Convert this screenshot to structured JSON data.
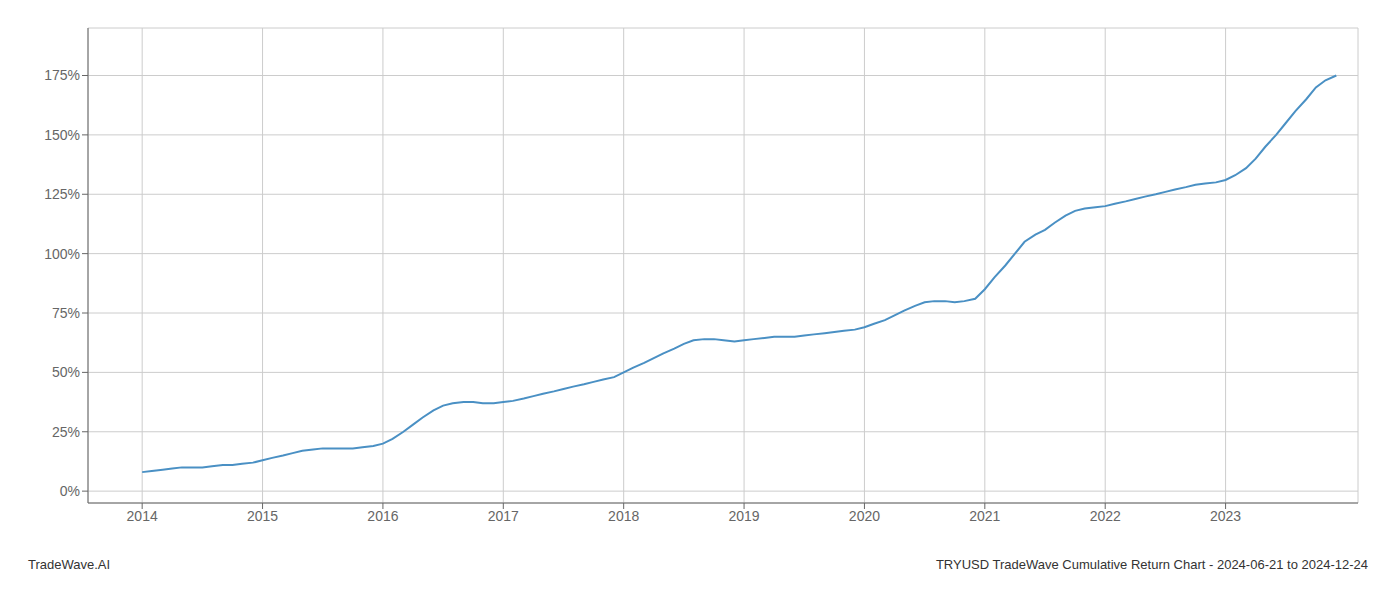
{
  "chart_data": {
    "type": "line",
    "title": "",
    "annotations": [
      "TradeWave.AI",
      "TRYUSD TradeWave Cumulative Return Chart - 2024-06-21 to 2024-12-24"
    ],
    "x": [
      2014.0,
      2014.08,
      2014.17,
      2014.25,
      2014.33,
      2014.42,
      2014.5,
      2014.58,
      2014.67,
      2014.75,
      2014.83,
      2014.92,
      2015.0,
      2015.08,
      2015.17,
      2015.25,
      2015.33,
      2015.42,
      2015.5,
      2015.58,
      2015.67,
      2015.75,
      2015.83,
      2015.92,
      2016.0,
      2016.08,
      2016.17,
      2016.25,
      2016.33,
      2016.42,
      2016.5,
      2016.58,
      2016.67,
      2016.75,
      2016.83,
      2016.92,
      2017.0,
      2017.08,
      2017.17,
      2017.25,
      2017.33,
      2017.42,
      2017.5,
      2017.58,
      2017.67,
      2017.75,
      2017.83,
      2017.92,
      2018.0,
      2018.08,
      2018.17,
      2018.25,
      2018.33,
      2018.42,
      2018.5,
      2018.58,
      2018.67,
      2018.75,
      2018.83,
      2018.92,
      2019.0,
      2019.08,
      2019.17,
      2019.25,
      2019.33,
      2019.42,
      2019.5,
      2019.58,
      2019.67,
      2019.75,
      2019.83,
      2019.92,
      2020.0,
      2020.08,
      2020.17,
      2020.25,
      2020.33,
      2020.42,
      2020.5,
      2020.58,
      2020.67,
      2020.75,
      2020.83,
      2020.92,
      2021.0,
      2021.08,
      2021.17,
      2021.25,
      2021.33,
      2021.42,
      2021.5,
      2021.58,
      2021.67,
      2021.75,
      2021.83,
      2021.92,
      2022.0,
      2022.08,
      2022.17,
      2022.25,
      2022.33,
      2022.42,
      2022.5,
      2022.58,
      2022.67,
      2022.75,
      2022.83,
      2022.92,
      2023.0,
      2023.08,
      2023.17,
      2023.25,
      2023.33,
      2023.42,
      2023.5,
      2023.58,
      2023.67,
      2023.75,
      2023.83,
      2023.92
    ],
    "values": [
      8,
      8.5,
      9,
      9.5,
      10,
      10,
      10,
      10.5,
      11,
      11,
      11.5,
      12,
      13,
      14,
      15,
      16,
      17,
      17.5,
      18,
      18,
      18,
      18,
      18.5,
      19,
      20,
      22,
      25,
      28,
      31,
      34,
      36,
      37,
      37.5,
      37.5,
      37,
      37,
      37.5,
      38,
      39,
      40,
      41,
      42,
      43,
      44,
      45,
      46,
      47,
      48,
      50,
      52,
      54,
      56,
      58,
      60,
      62,
      63.5,
      64,
      64,
      63.5,
      63,
      63.5,
      64,
      64.5,
      65,
      65,
      65,
      65.5,
      66,
      66.5,
      67,
      67.5,
      68,
      69,
      70.5,
      72,
      74,
      76,
      78,
      79.5,
      80,
      80,
      79.5,
      80,
      81,
      85,
      90,
      95,
      100,
      105,
      108,
      110,
      113,
      116,
      118,
      119,
      119.5,
      120,
      121,
      122,
      123,
      124,
      125,
      126,
      127,
      128,
      129,
      129.5,
      130,
      131,
      133,
      136,
      140,
      145,
      150,
      155,
      160,
      165,
      170,
      173,
      175
    ],
    "color": "#4a90c4",
    "xlim": [
      2013.55,
      2024.1
    ],
    "xticks": [
      2014,
      2015,
      2016,
      2017,
      2018,
      2019,
      2020,
      2021,
      2022,
      2023
    ],
    "ylim": [
      -5,
      195
    ],
    "yticks": [
      {
        "value": 0,
        "label": "0%"
      },
      {
        "value": 25,
        "label": "25%"
      },
      {
        "value": 50,
        "label": "50%"
      },
      {
        "value": 75,
        "label": "75%"
      },
      {
        "value": 100,
        "label": "100%"
      },
      {
        "value": 125,
        "label": "125%"
      },
      {
        "value": 150,
        "label": "150%"
      },
      {
        "value": 175,
        "label": "175%"
      }
    ],
    "grid": true
  }
}
